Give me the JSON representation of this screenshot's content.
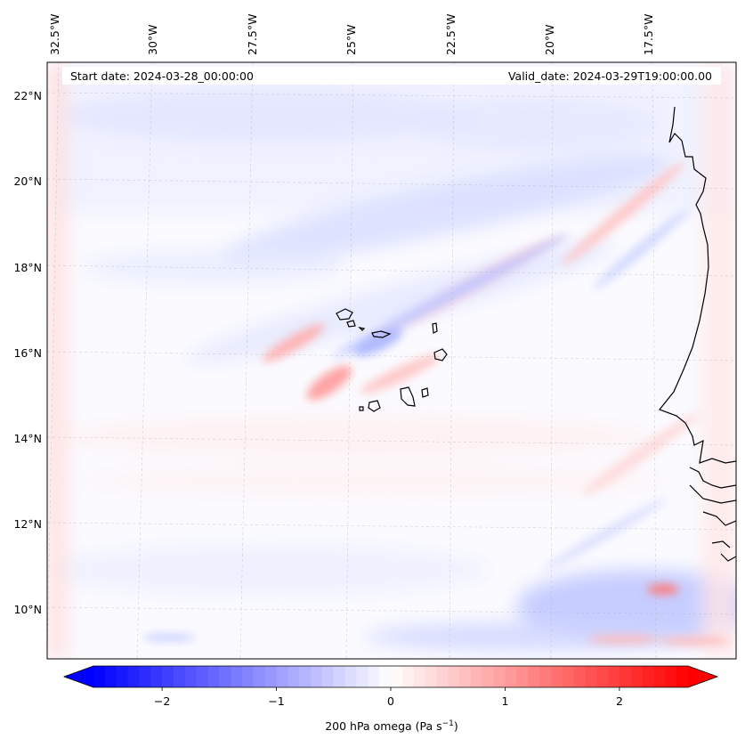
{
  "map": {
    "start_date_label": "Start date: 2024-03-28_00:00:00",
    "valid_date_label": "Valid_date: 2024-03-29T19:00:00.00",
    "longitude_labels": [
      "32.5°W",
      "30°W",
      "27.5°W",
      "25°W",
      "22.5°W",
      "20°W",
      "17.5°W"
    ],
    "latitude_labels": [
      "22°N",
      "20°N",
      "18°N",
      "16°N",
      "14°N",
      "12°N",
      "10°N"
    ],
    "coastline_color": "#000000",
    "gridline_color": "#b0b0b0"
  },
  "colorbar": {
    "label_main": "200 hPa omega (Pa s",
    "label_exp": "−1",
    "label_end": ")",
    "tick_labels": [
      "−2",
      "−1",
      "0",
      "1",
      "2"
    ],
    "tick_values": [
      -2,
      -1,
      0,
      1,
      2
    ],
    "range": [
      -2.6,
      2.6
    ],
    "color_low": "#0000ff",
    "color_mid": "#ffffff",
    "color_high": "#ff0000"
  }
}
